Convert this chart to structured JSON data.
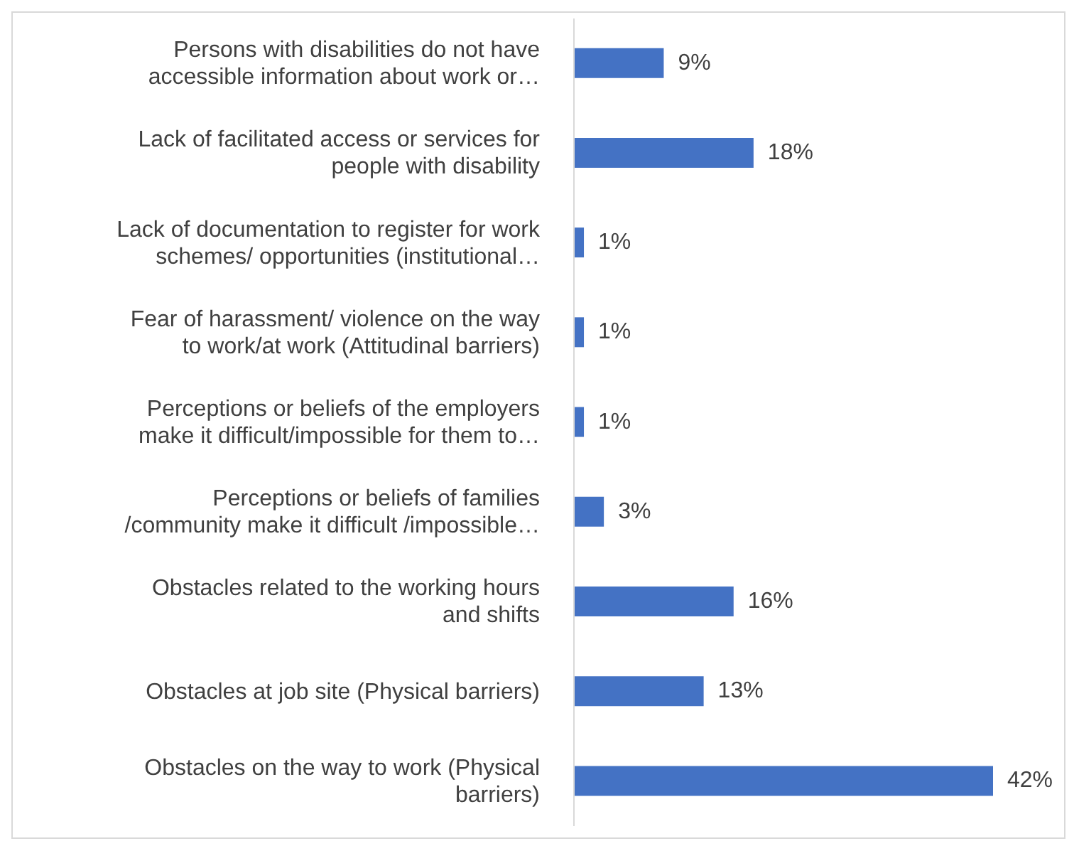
{
  "chart_data": {
    "type": "bar",
    "orientation": "horizontal",
    "categories": [
      "Persons with disabilities do not have\naccessible information about work or…",
      "Lack of facilitated access or services for\npeople with disability",
      "Lack of documentation to register for work\nschemes/ opportunities (institutional…",
      "Fear of harassment/ violence on the way\nto work/at work (Attitudinal barriers)",
      "Perceptions or beliefs of the employers\nmake it difficult/impossible for them to…",
      "Perceptions or beliefs of families\n/community make it difficult /impossible…",
      "Obstacles related to the working hours\nand shifts",
      "Obstacles at job site  (Physical barriers)",
      "Obstacles on the way to work (Physical\nbarriers)"
    ],
    "values": [
      9,
      18,
      1,
      1,
      1,
      3,
      16,
      13,
      42
    ],
    "value_labels": [
      "9%",
      "18%",
      "1%",
      "1%",
      "1%",
      "3%",
      "16%",
      "13%",
      "42%"
    ],
    "color": "#4472c4",
    "tick_labels": "y"
  }
}
